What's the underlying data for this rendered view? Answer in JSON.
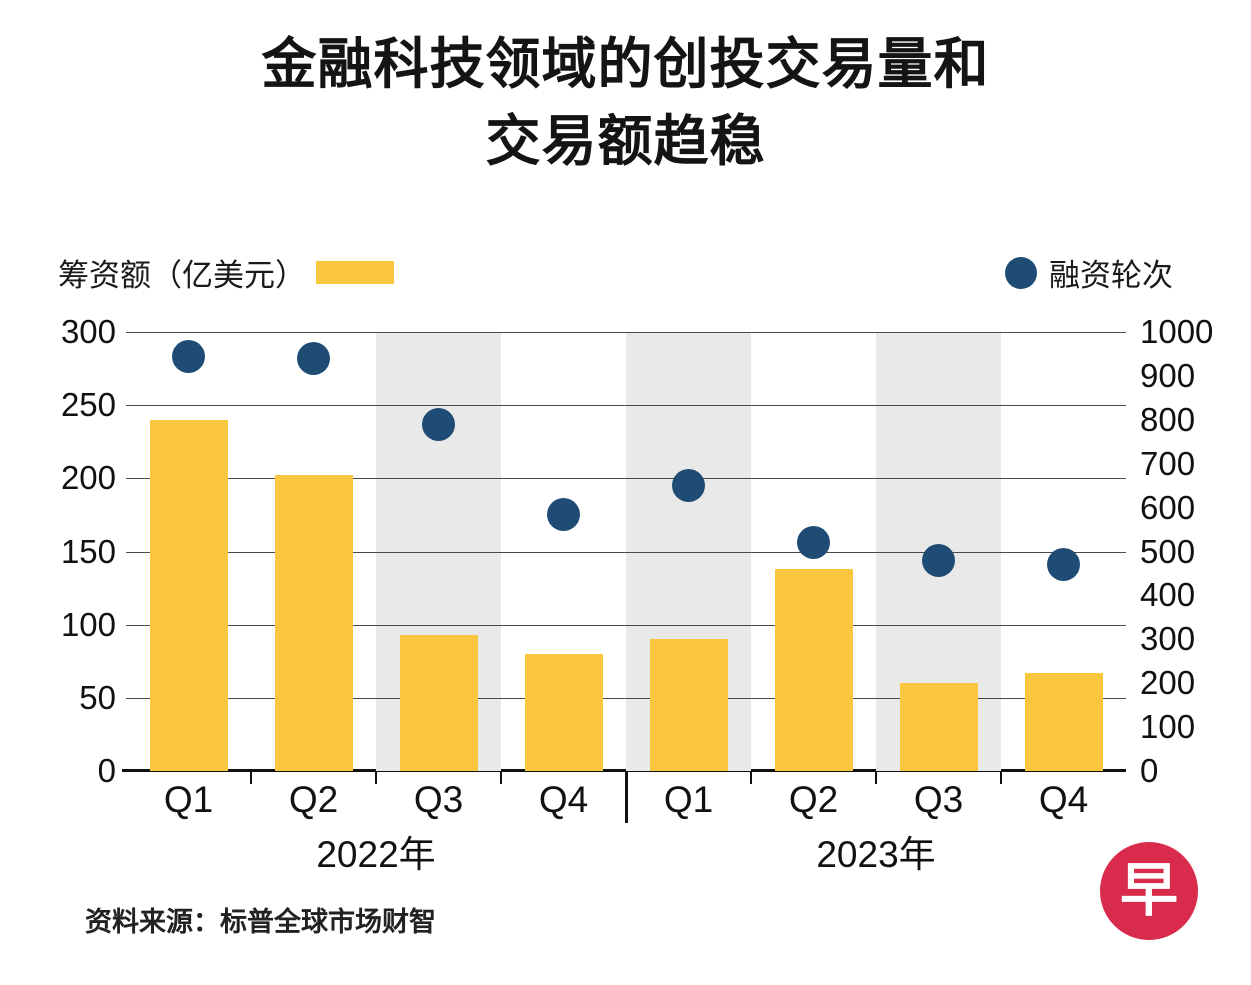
{
  "title": "金融科技领域的创投交易量和\n交易额趋稳",
  "legend": {
    "bars_label": "筹资额（亿美元）",
    "dots_label": "融资轮次"
  },
  "source": "资料来源：标普全球市场财智",
  "logo": {
    "char": "早"
  },
  "colors": {
    "bar": "#F9C63E",
    "dot": "#1E4C75",
    "band": "#E9E9E9",
    "logo_red": "#D92B4B"
  },
  "chart_data": {
    "type": "bar",
    "subtype": "bar-and-scatter-dual-axis",
    "title": "金融科技领域的创投交易量和交易额趋稳",
    "categories": [
      "Q1",
      "Q2",
      "Q3",
      "Q4",
      "Q1",
      "Q2",
      "Q3",
      "Q4"
    ],
    "year_groups": [
      {
        "label": "2022年",
        "span": 4
      },
      {
        "label": "2023年",
        "span": 4
      }
    ],
    "series": [
      {
        "name": "筹资额（亿美元）",
        "type": "bar",
        "axis": "left",
        "values": [
          240,
          202,
          93,
          80,
          90,
          138,
          60,
          67
        ]
      },
      {
        "name": "融资轮次",
        "type": "scatter",
        "axis": "right",
        "values": [
          945,
          940,
          790,
          585,
          650,
          520,
          480,
          470
        ]
      }
    ],
    "left_axis": {
      "label": "筹资额（亿美元）",
      "min": 0,
      "max": 300,
      "ticks": [
        300,
        250,
        200,
        150,
        100,
        50,
        0
      ]
    },
    "right_axis": {
      "label": "融资轮次",
      "min": 0,
      "max": 1000,
      "ticks": [
        1000,
        900,
        800,
        700,
        600,
        500,
        400,
        300,
        200,
        100,
        0
      ]
    },
    "shaded_quarters": [
      2,
      4,
      6
    ],
    "grid": "horizontal",
    "legend_position": "top"
  }
}
